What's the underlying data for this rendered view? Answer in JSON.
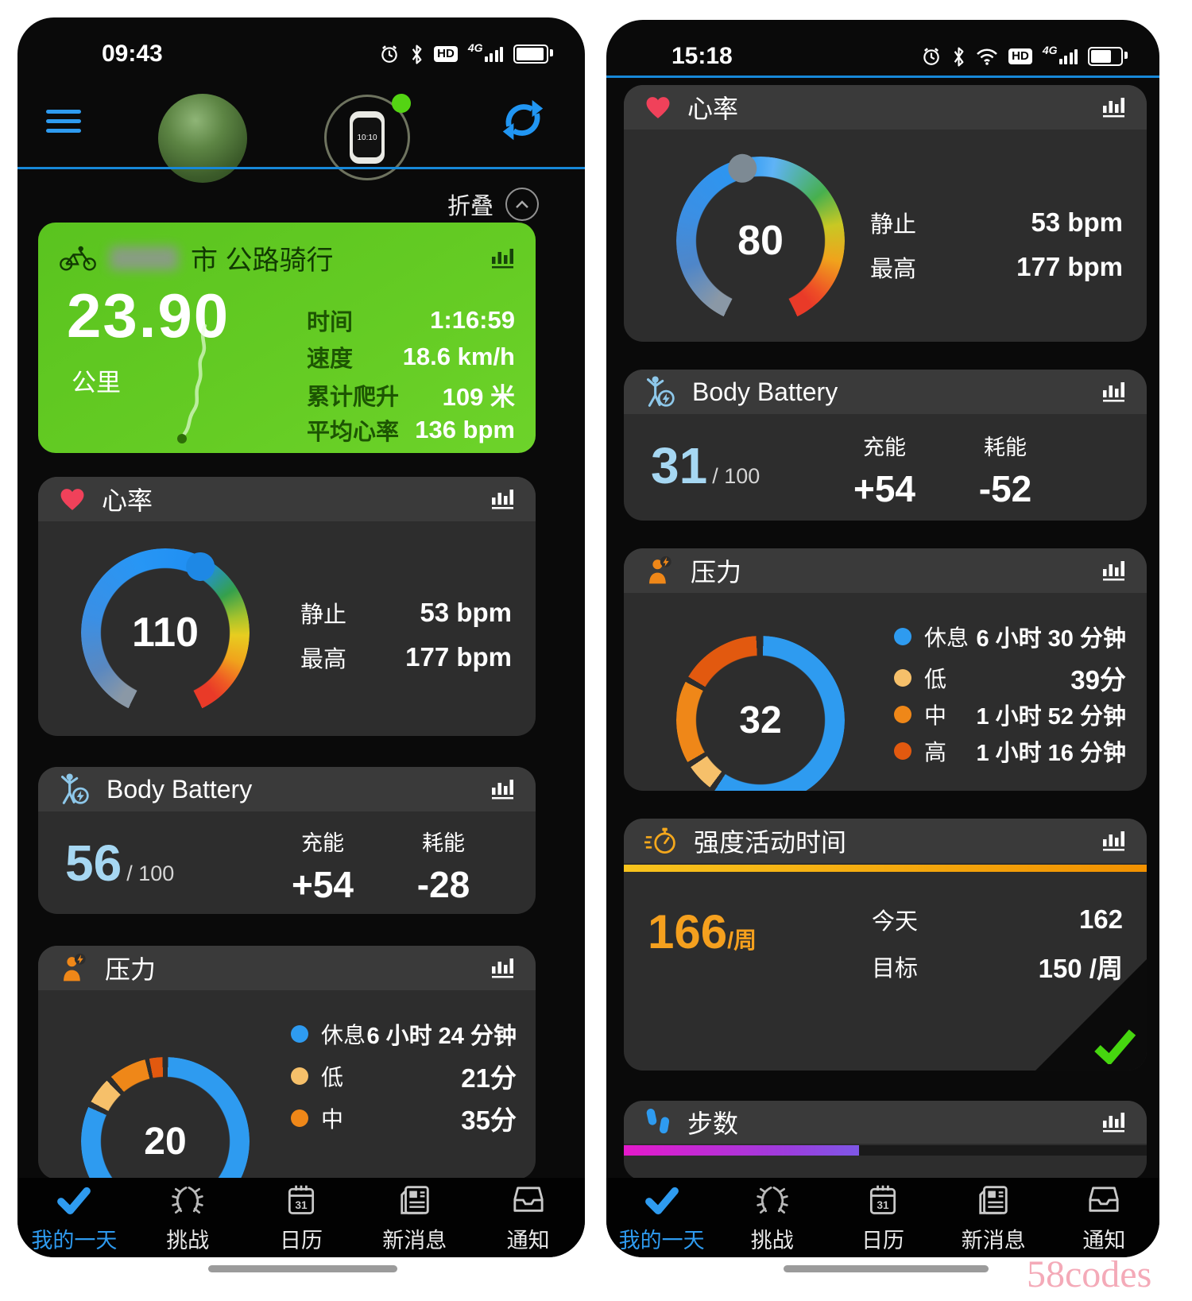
{
  "watermark": "58codes",
  "colors": {
    "accent_blue": "#2e9bf0",
    "green_card": "#5fc622",
    "heart_red": "#f0415a",
    "body_battery_value": "#a6d7f2",
    "intensity_orange": "#f5a01e",
    "steps_gradient_start": "#e519cb",
    "steps_gradient_end": "#7e57e6"
  },
  "nav": {
    "items": [
      {
        "label": "我的一天",
        "icon": "check-icon",
        "active": true
      },
      {
        "label": "挑战",
        "icon": "wreath-icon",
        "active": false
      },
      {
        "label": "日历",
        "icon": "calendar-icon",
        "active": false
      },
      {
        "label": "新消息",
        "icon": "news-icon",
        "active": false
      },
      {
        "label": "通知",
        "icon": "inbox-icon",
        "active": false
      }
    ]
  },
  "left": {
    "status_time": "09:43",
    "collapse_label": "折叠",
    "activity": {
      "title": "市 公路骑行",
      "value": "23.90",
      "unit": "公里",
      "stats": [
        {
          "label": "时间",
          "value": "1:16:59"
        },
        {
          "label": "速度",
          "value": "18.6 km/h"
        },
        {
          "label": "累计爬升",
          "value": "109 米"
        },
        {
          "label": "平均心率",
          "value": "136 bpm"
        }
      ]
    },
    "heart": {
      "title": "心率",
      "value": "110",
      "stats": [
        {
          "label": "静止",
          "value": "53 bpm"
        },
        {
          "label": "最高",
          "value": "177 bpm"
        }
      ]
    },
    "body_battery": {
      "title": "Body Battery",
      "value": "56",
      "denominator": "/ 100",
      "stats": [
        {
          "label": "充能",
          "value": "+54"
        },
        {
          "label": "耗能",
          "value": "-28"
        }
      ]
    },
    "stress": {
      "title": "压力",
      "value": "20",
      "legend": [
        {
          "label": "休息",
          "value": "6 小时 24 分钟",
          "color": "#2e9bf0"
        },
        {
          "label": "低",
          "value": "21分",
          "color": "#f6c06a"
        },
        {
          "label": "中",
          "value": "35分",
          "color": "#ef8718"
        }
      ]
    }
  },
  "right": {
    "status_time": "15:18",
    "heart": {
      "title": "心率",
      "value": "80",
      "stats": [
        {
          "label": "静止",
          "value": "53 bpm"
        },
        {
          "label": "最高",
          "value": "177 bpm"
        }
      ]
    },
    "body_battery": {
      "title": "Body Battery",
      "value": "31",
      "denominator": "/ 100",
      "stats": [
        {
          "label": "充能",
          "value": "+54"
        },
        {
          "label": "耗能",
          "value": "-52"
        }
      ]
    },
    "stress": {
      "title": "压力",
      "value": "32",
      "legend": [
        {
          "label": "休息",
          "value": "6 小时 30 分钟",
          "color": "#2e9bf0"
        },
        {
          "label": "低",
          "value": "39分",
          "color": "#f6c06a"
        },
        {
          "label": "中",
          "value": "1 小时 52 分钟",
          "color": "#ef8718"
        },
        {
          "label": "高",
          "value": "1 小时 16 分钟",
          "color": "#e2590f"
        }
      ]
    },
    "intensity": {
      "title": "强度活动时间",
      "value": "166",
      "unit": "/周",
      "fill_percent": 100,
      "stats": [
        {
          "label": "今天",
          "value": "162"
        },
        {
          "label": "目标",
          "value": "150 /周"
        }
      ]
    },
    "steps": {
      "title": "步数",
      "fill_percent": 45
    }
  }
}
